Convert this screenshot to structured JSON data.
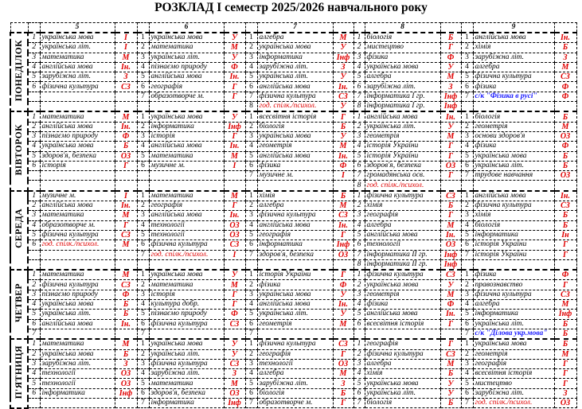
{
  "title": "РОЗКЛАД І семестр 2025/2026 навчального року",
  "grades": [
    "5",
    "6",
    "7",
    "8",
    "9"
  ],
  "colors": {
    "room_code": "#e00000",
    "elective": "#1a1aff",
    "text": "#000000"
  },
  "days": [
    {
      "name": "ПОНЕДІЛОК",
      "rows": [
        [
          [
            "1",
            "українська мова",
            "І"
          ],
          [
            "1",
            "українська мова",
            "У"
          ],
          [
            "1",
            "алгебра",
            "М"
          ],
          [
            "1",
            "біологія",
            "Б"
          ],
          [
            "1",
            "англійська мова",
            "Ін."
          ]
        ],
        [
          [
            "2",
            "українська літ.",
            "І"
          ],
          [
            "2",
            "математика",
            "М"
          ],
          [
            "2",
            "українська мова",
            "У"
          ],
          [
            "2",
            "мистецтво",
            "Г"
          ],
          [
            "2",
            "хімія",
            "Б"
          ]
        ],
        [
          [
            "3",
            "математика",
            "М"
          ],
          [
            "3",
            "українська літ.",
            "У"
          ],
          [
            "3",
            "інформатика",
            "Інф"
          ],
          [
            "3",
            "фізика",
            "Ф"
          ],
          [
            "3",
            "зарубіжна літ.",
            "З"
          ]
        ],
        [
          [
            "4",
            "англійська мова",
            "Ін."
          ],
          [
            "4",
            "пізнаємо природу",
            "Ф"
          ],
          [
            "4",
            "зарубіжна літ.",
            "З"
          ],
          [
            "4",
            "українська мова",
            "У"
          ],
          [
            "4",
            "алгебра",
            "М"
          ]
        ],
        [
          [
            "5",
            "зарубіжна літ.",
            "З"
          ],
          [
            "5",
            "англійська мова",
            "Ін."
          ],
          [
            "5",
            "українська літ.",
            "У"
          ],
          [
            "5",
            "алгебра",
            "М"
          ],
          [
            "5",
            "фізична культура",
            "СЗ"
          ]
        ],
        [
          [
            "6",
            "фізична культура",
            "СЗ"
          ],
          [
            "6",
            "географія",
            "Г"
          ],
          [
            "6",
            "англійська мова",
            "Ін."
          ],
          [
            "6",
            "зарубіжна літ.",
            "З"
          ],
          [
            "6",
            "фізика",
            "Ф"
          ]
        ],
        [
          [
            "",
            "",
            ""
          ],
          [
            "7",
            "образотворче м.",
            "Г"
          ],
          [
            "7",
            "фізична культура",
            "СЗ"
          ],
          [
            "7",
            "інформатика I гр.",
            "Інф"
          ],
          [
            "7",
            "с/к \"Фізика в русі\"",
            "Ф"
          ]
        ],
        [
          [
            "",
            "",
            ""
          ],
          [
            "",
            "",
            ""
          ],
          [
            "8",
            "год. спілк./психол.",
            "У"
          ],
          [
            "8",
            "інформатика I гр.",
            "Інф"
          ],
          [
            "",
            "",
            ""
          ]
        ]
      ]
    },
    {
      "name": "ВІВТОРОК",
      "rows": [
        [
          [
            "1",
            "математика",
            "М"
          ],
          [
            "1",
            "українська мова",
            "У"
          ],
          [
            "1",
            "всесвітня історія",
            "Г"
          ],
          [
            "1",
            "англійська мова",
            "Ін."
          ],
          [
            "1",
            "біологія",
            "Б"
          ]
        ],
        [
          [
            "2",
            "англійська мова",
            "Ін."
          ],
          [
            "2",
            "інформатика",
            "Інф"
          ],
          [
            "2",
            "біологія",
            "Б"
          ],
          [
            "2",
            "українська літ.",
            "У"
          ],
          [
            "2",
            "геометрія",
            "М"
          ]
        ],
        [
          [
            "3",
            "пізнаємо природу",
            "Ф"
          ],
          [
            "3",
            "історія",
            "Г"
          ],
          [
            "3",
            "українська мова",
            "У"
          ],
          [
            "3",
            "геометрія",
            "М"
          ],
          [
            "3",
            "основи здоров'я",
            "ОЗ"
          ]
        ],
        [
          [
            "4",
            "українська мова",
            "Б"
          ],
          [
            "4",
            "англійська мова",
            "Ін."
          ],
          [
            "4",
            "геометрія",
            "М"
          ],
          [
            "4",
            "історія України",
            "Г"
          ],
          [
            "4",
            "фізика",
            "Ф"
          ]
        ],
        [
          [
            "5",
            "здоров'я, безпека",
            "ОЗ"
          ],
          [
            "5",
            "математика",
            "М"
          ],
          [
            "5",
            "англійська мова",
            "Ін."
          ],
          [
            "5",
            "історія України",
            "Г"
          ],
          [
            "5",
            "українська мова",
            "Б"
          ]
        ],
        [
          [
            "6",
            "історія",
            "Г"
          ],
          [
            "6",
            "музичне м.",
            "І"
          ],
          [
            "6",
            "фізика",
            "Ф"
          ],
          [
            "6",
            "здоров'я, безпека",
            "ОЗ"
          ],
          [
            "6",
            "українська літ.",
            "Б"
          ]
        ],
        [
          [
            "",
            "",
            ""
          ],
          [
            "",
            "",
            ""
          ],
          [
            "7",
            "музичне м.",
            "І"
          ],
          [
            "7",
            "громадянська осв.",
            "Г"
          ],
          [
            "7",
            "трудове навчання",
            "ОЗ"
          ]
        ],
        [
          [
            "",
            "",
            ""
          ],
          [
            "",
            "",
            ""
          ],
          [
            "",
            "",
            ""
          ],
          [
            "8",
            "год. спілк./психол.",
            ""
          ],
          [
            "",
            "",
            ""
          ]
        ]
      ]
    },
    {
      "name": "СЕРЕДА",
      "rows": [
        [
          [
            "1",
            "музичне м.",
            "І"
          ],
          [
            "1",
            "математика",
            "М"
          ],
          [
            "1",
            "хімія",
            "Б"
          ],
          [
            "1",
            "фізична культура",
            "СЗ"
          ],
          [
            "1",
            "англійська мова",
            "Ін."
          ]
        ],
        [
          [
            "2",
            "англійська мова",
            "Ін."
          ],
          [
            "2",
            "географія",
            "Г"
          ],
          [
            "2",
            "алгебра",
            "М"
          ],
          [
            "2",
            "хімія",
            "Б"
          ],
          [
            "2",
            "фізична культура",
            "СЗ"
          ]
        ],
        [
          [
            "3",
            "математика",
            "М"
          ],
          [
            "3",
            "англійська мова",
            "Ін."
          ],
          [
            "3",
            "фізична культура",
            "СЗ"
          ],
          [
            "3",
            "географія",
            "Г"
          ],
          [
            "3",
            "хімія",
            "Б"
          ]
        ],
        [
          [
            "4",
            "образотворче м.",
            "Г"
          ],
          [
            "4",
            "технології",
            "ОЗ"
          ],
          [
            "4",
            "англійська мова",
            "Ін."
          ],
          [
            "4",
            "алгебра",
            "М"
          ],
          [
            "4",
            "біологія",
            "Б"
          ]
        ],
        [
          [
            "5",
            "фізична культура",
            "СЗ"
          ],
          [
            "5",
            "технології",
            "ОЗ"
          ],
          [
            "5",
            "географія",
            "Г"
          ],
          [
            "5",
            "англійська мова",
            "Ін."
          ],
          [
            "5",
            "інформатика",
            "Ін"
          ]
        ],
        [
          [
            "6",
            "год. спілк./психол.",
            "М"
          ],
          [
            "6",
            "фізична культура",
            "СЗ"
          ],
          [
            "6",
            "інформатика",
            "Інф"
          ],
          [
            "6",
            "технології",
            "ОЗ"
          ],
          [
            "6",
            "історія України",
            "Г"
          ]
        ],
        [
          [
            "",
            "",
            ""
          ],
          [
            "7",
            "год. спілк./психол.",
            "І"
          ],
          [
            "7",
            "здоров'я, безпека",
            "ОЗ"
          ],
          [
            "7",
            "інформатика II гр.",
            "Інф"
          ],
          [
            "7",
            "історія України",
            "Г"
          ]
        ],
        [
          [
            "",
            "",
            ""
          ],
          [
            "",
            "",
            ""
          ],
          [
            "",
            "",
            ""
          ],
          [
            "8",
            "інформатика II гр.",
            "Інф"
          ],
          [
            "",
            "",
            ""
          ]
        ]
      ]
    },
    {
      "name": "ЧЕТВЕР",
      "rows": [
        [
          [
            "1",
            "математика",
            "М"
          ],
          [
            "1",
            "українська мова",
            "У"
          ],
          [
            "1",
            "історія України",
            "Г"
          ],
          [
            "1",
            "фізична культура",
            "СЗ"
          ],
          [
            "1",
            "фізика",
            "Ф"
          ]
        ],
        [
          [
            "2",
            "фізична культура",
            "СЗ"
          ],
          [
            "2",
            "математика",
            "М"
          ],
          [
            "2",
            "фізика",
            "Ф"
          ],
          [
            "2",
            "українська мова",
            "У"
          ],
          [
            "2",
            "правознавство",
            "Г"
          ]
        ],
        [
          [
            "3",
            "пізнаємо природу",
            "Ф"
          ],
          [
            "3",
            "історія",
            "Г"
          ],
          [
            "3",
            "українська мова",
            "У"
          ],
          [
            "3",
            "геометрія",
            "М"
          ],
          [
            "3",
            "фізична культура",
            "СЗ"
          ]
        ],
        [
          [
            "4",
            "українська мова",
            "Б"
          ],
          [
            "4",
            "культура добр.",
            "Г"
          ],
          [
            "4",
            "англійська мова",
            "Ін."
          ],
          [
            "4",
            "фізика",
            "Ф"
          ],
          [
            "4",
            "алгебра",
            "М"
          ]
        ],
        [
          [
            "5",
            "українська літ.",
            "Б"
          ],
          [
            "5",
            "пізнаємо природу",
            "Ф"
          ],
          [
            "5",
            "українська літ.",
            "У"
          ],
          [
            "5",
            "англійська мова",
            "Ін."
          ],
          [
            "5",
            "інформатика",
            "Інф"
          ]
        ],
        [
          [
            "6",
            "англійська мова",
            "Ін."
          ],
          [
            "6",
            "фізична культура",
            "СЗ"
          ],
          [
            "6",
            "геометрія",
            "М"
          ],
          [
            "6",
            "всесвітня історія",
            "Г"
          ],
          [
            "6",
            "українська літ.",
            "Б"
          ]
        ],
        [
          [
            "7",
            "",
            ""
          ],
          [
            "7",
            "",
            ""
          ],
          [
            "7",
            "",
            ""
          ],
          [
            "",
            "",
            ""
          ],
          [
            "7",
            "с/к \"Ділова укр.мова\"",
            "Б"
          ]
        ]
      ]
    },
    {
      "name": "П'ЯТНИЦЯ",
      "rows": [
        [
          [
            "1",
            "математика",
            "М"
          ],
          [
            "1",
            "українська мова",
            "У"
          ],
          [
            "1",
            "фізична культура",
            "СЗ"
          ],
          [
            "1",
            "географія",
            "Г"
          ],
          [
            "1",
            "українська мова",
            "Б"
          ]
        ],
        [
          [
            "2",
            "українська мова",
            "Б"
          ],
          [
            "2",
            "українська літ.",
            "У"
          ],
          [
            "2",
            "географія",
            "Г"
          ],
          [
            "2",
            "фізична культура",
            "СЗ"
          ],
          [
            "2",
            "геометрія",
            "М"
          ]
        ],
        [
          [
            "3",
            "зарубіжна літ.",
            "З"
          ],
          [
            "3",
            "фізична культура",
            "СЗ"
          ],
          [
            "3",
            "технології",
            "ОЗ"
          ],
          [
            "3",
            "алгебра",
            "М"
          ],
          [
            "3",
            "географія",
            "Г"
          ]
        ],
        [
          [
            "4",
            "технології",
            "ОЗ"
          ],
          [
            "4",
            "зарубіжна літ.",
            "З"
          ],
          [
            "4",
            "алгебра",
            "М"
          ],
          [
            "4",
            "хімія",
            "Б"
          ],
          [
            "4",
            "всесвітня історія",
            "Г"
          ]
        ],
        [
          [
            "5",
            "технології",
            "ОЗ"
          ],
          [
            "5",
            "математика",
            "М"
          ],
          [
            "5",
            "зарубіжна літ.",
            "З"
          ],
          [
            "5",
            "українська мова",
            "У"
          ],
          [
            "5",
            "мистецтво",
            "Г"
          ]
        ],
        [
          [
            "6",
            "інформатика",
            "Інф"
          ],
          [
            "6",
            "здоров'я, безпека",
            "ОЗ"
          ],
          [
            "6",
            "біологія",
            "Б"
          ],
          [
            "6",
            "українська літ.",
            "У"
          ],
          [
            "6",
            "зарубіжна літ.",
            "З"
          ]
        ],
        [
          [
            "",
            "",
            ""
          ],
          [
            "7",
            "інформатика",
            "Інф"
          ],
          [
            "7",
            "образотворче м.",
            "Г"
          ],
          [
            "7",
            "біологія",
            "Б"
          ],
          [
            "7",
            "год. спілк./психол.",
            "ОЗ"
          ]
        ]
      ]
    }
  ]
}
